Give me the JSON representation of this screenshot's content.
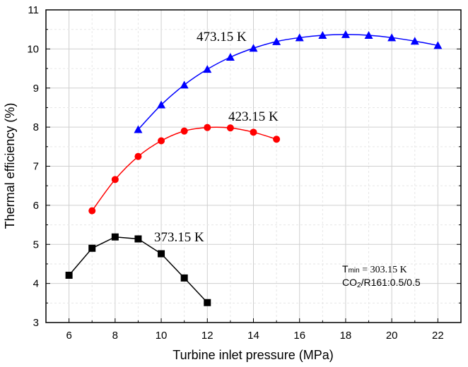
{
  "chart_data": {
    "type": "line",
    "title": "",
    "xlabel": "Turbine inlet pressure (MPa)",
    "ylabel": "Thermal efficiency (%)",
    "xlim": [
      5,
      23
    ],
    "ylim": [
      3,
      11
    ],
    "xticks": [
      6,
      8,
      10,
      12,
      14,
      16,
      18,
      20,
      22
    ],
    "yticks": [
      3,
      4,
      5,
      6,
      7,
      8,
      9,
      10,
      11
    ],
    "grid": true,
    "series": [
      {
        "name": "373.15 K",
        "color": "#000000",
        "marker": "square",
        "smooth": false,
        "x": [
          6,
          7,
          8,
          9,
          10,
          11,
          12
        ],
        "values": [
          4.21,
          4.9,
          5.19,
          5.14,
          4.76,
          4.14,
          3.51
        ]
      },
      {
        "name": "423.15 K",
        "color": "#ff0000",
        "marker": "circle",
        "smooth": true,
        "x": [
          7,
          8,
          9,
          10,
          11,
          12,
          13,
          14,
          15
        ],
        "values": [
          5.86,
          6.66,
          7.25,
          7.65,
          7.9,
          7.99,
          7.98,
          7.87,
          7.69
        ]
      },
      {
        "name": "473.15 K",
        "color": "#0000ff",
        "marker": "triangle",
        "smooth": true,
        "x": [
          9,
          10,
          11,
          12,
          13,
          14,
          15,
          16,
          17,
          18,
          19,
          20,
          21,
          22
        ],
        "values": [
          7.94,
          8.57,
          9.08,
          9.48,
          9.79,
          10.02,
          10.19,
          10.29,
          10.35,
          10.37,
          10.35,
          10.29,
          10.2,
          10.09
        ]
      }
    ],
    "annotations": {
      "tmin_symbol": "T",
      "tmin_sub": "min",
      "tmin_value": " = 303.15 K",
      "mix_a": "CO",
      "mix_sub": "2",
      "mix_b": "/R161:0.5/0.5"
    }
  }
}
